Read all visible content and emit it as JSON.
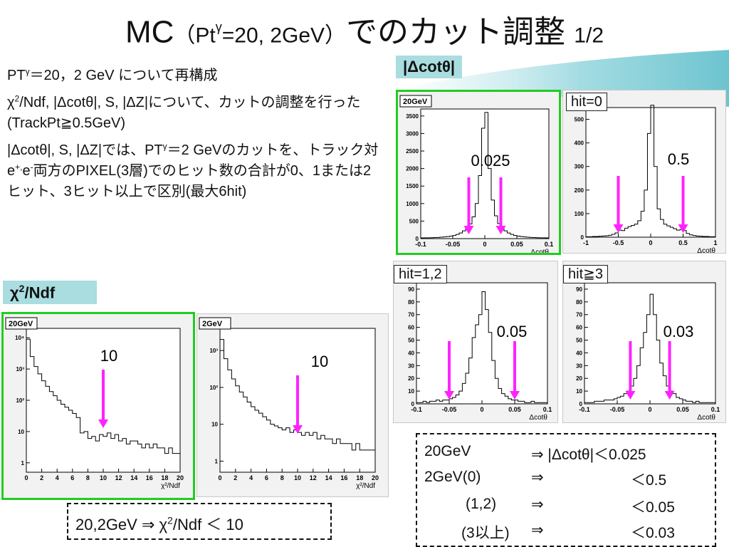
{
  "slide": {
    "title_main": "MC",
    "title_paren": "（Pt",
    "title_sup": "γ",
    "title_paren2": "=20, 2GeV）",
    "title_jp": "でのカット調整",
    "title_page": "1/2"
  },
  "bullets": {
    "b1_pre": "PT",
    "b1_sup": "γ",
    "b1_post": "＝20，2 GeV について再構成",
    "b2_pre": "χ",
    "b2_sup": "2",
    "b2_post": "/Ndf, |Δcotθ|, S, |ΔZ|について、カットの調整を行った(TrackPt≧0.5GeV)",
    "b3_a": "|Δcotθ|, S, |ΔZ|では、PT",
    "b3_sup": "γ",
    "b3_b": "＝2 GeVのカットを、トラック対e",
    "b3_sup2": "+,",
    "b3_c": "e",
    "b3_sup3": "-",
    "b3_d": "両方のPIXEL(3層)でのヒット数の合計が0、1または2ヒット、3ヒット以上で区別(最大6hit)"
  },
  "labels": {
    "dcot_box": "|Δcotθ|",
    "chi_box_pre": "χ",
    "chi_box_sup": "2",
    "chi_box_post": "/Ndf",
    "hit0": "hit=0",
    "hit12": "hit=1,2",
    "hit3": "hit≧3"
  },
  "chart_data": [
    {
      "type": "histogram",
      "title": "20GeV",
      "xlabel": "Δcotθ",
      "x_ticks": [
        "-0.1",
        "-0.05",
        "0",
        "0.05",
        "0.1"
      ],
      "y_ticks": [
        "0",
        "500",
        "1000",
        "1500",
        "2000",
        "2500",
        "3000",
        "3500"
      ],
      "xlim": [
        -0.1,
        0.1
      ],
      "ylim": [
        0,
        3700
      ],
      "bins_x": [
        -0.1,
        -0.095,
        -0.09,
        -0.085,
        -0.08,
        -0.075,
        -0.07,
        -0.065,
        -0.06,
        -0.055,
        -0.05,
        -0.045,
        -0.04,
        -0.035,
        -0.03,
        -0.025,
        -0.02,
        -0.015,
        -0.01,
        -0.005,
        0,
        0.005,
        0.01,
        0.015,
        0.02,
        0.025,
        0.03,
        0.035,
        0.04,
        0.045,
        0.05,
        0.055,
        0.06,
        0.065,
        0.07,
        0.075,
        0.08,
        0.085,
        0.09,
        0.095
      ],
      "values": [
        20,
        22,
        24,
        26,
        30,
        34,
        40,
        48,
        58,
        72,
        90,
        120,
        160,
        220,
        300,
        420,
        620,
        1000,
        1800,
        3150,
        3600,
        2000,
        1100,
        650,
        430,
        300,
        220,
        160,
        120,
        90,
        70,
        58,
        48,
        40,
        34,
        30,
        26,
        24,
        22,
        20
      ],
      "cut_arrows": [
        -0.025,
        0.025
      ],
      "annotation": "0.025"
    },
    {
      "type": "histogram",
      "title": "",
      "xlabel": "Δcotθ",
      "x_ticks": [
        "-1",
        "-0.5",
        "0",
        "0.5",
        "1"
      ],
      "y_ticks": [
        "0",
        "100",
        "200",
        "300",
        "400",
        "500"
      ],
      "xlim": [
        -1,
        1
      ],
      "ylim": [
        0,
        550
      ],
      "bins_x": [
        -1,
        -0.95,
        -0.9,
        -0.85,
        -0.8,
        -0.75,
        -0.7,
        -0.65,
        -0.6,
        -0.55,
        -0.5,
        -0.45,
        -0.4,
        -0.35,
        -0.3,
        -0.25,
        -0.2,
        -0.15,
        -0.1,
        -0.05,
        0,
        0.05,
        0.1,
        0.15,
        0.2,
        0.25,
        0.3,
        0.35,
        0.4,
        0.45,
        0.5,
        0.55,
        0.6,
        0.65,
        0.7,
        0.75,
        0.8,
        0.85,
        0.9,
        0.95
      ],
      "values": [
        2,
        2,
        3,
        3,
        4,
        5,
        6,
        8,
        12,
        18,
        30,
        28,
        38,
        45,
        50,
        55,
        70,
        110,
        200,
        440,
        560,
        300,
        120,
        75,
        55,
        48,
        42,
        36,
        30,
        32,
        28,
        16,
        10,
        7,
        5,
        4,
        3,
        3,
        2,
        2
      ],
      "cut_arrows": [
        -0.5,
        0.5
      ],
      "annotation": "0.5"
    },
    {
      "type": "histogram",
      "title": "",
      "xlabel": "Δcotθ",
      "x_ticks": [
        "-0.1",
        "-0.05",
        "0",
        "0.05",
        "0.1"
      ],
      "y_ticks": [
        "0",
        "10",
        "20",
        "30",
        "40",
        "50",
        "60",
        "70",
        "80",
        "90"
      ],
      "xlim": [
        -0.1,
        0.1
      ],
      "ylim": [
        0,
        95
      ],
      "bins_x": [
        -0.1,
        -0.095,
        -0.09,
        -0.085,
        -0.08,
        -0.075,
        -0.07,
        -0.065,
        -0.06,
        -0.055,
        -0.05,
        -0.045,
        -0.04,
        -0.035,
        -0.03,
        -0.025,
        -0.02,
        -0.015,
        -0.01,
        -0.005,
        0,
        0.005,
        0.01,
        0.015,
        0.02,
        0.025,
        0.03,
        0.035,
        0.04,
        0.045,
        0.05,
        0.055,
        0.06,
        0.065,
        0.07,
        0.075,
        0.08,
        0.085,
        0.09,
        0.095
      ],
      "values": [
        1,
        1,
        2,
        1,
        2,
        2,
        3,
        2,
        3,
        3,
        4,
        5,
        7,
        10,
        16,
        24,
        36,
        52,
        62,
        70,
        88,
        74,
        56,
        34,
        20,
        12,
        8,
        6,
        4,
        3,
        3,
        2,
        2,
        1,
        1,
        2,
        1,
        1,
        1,
        1
      ],
      "cut_arrows": [
        -0.05,
        0.05
      ],
      "annotation": "0.05"
    },
    {
      "type": "histogram",
      "title": "",
      "xlabel": "Δcotθ",
      "x_ticks": [
        "-0.1",
        "-0.05",
        "0",
        "0.05",
        "0.1"
      ],
      "y_ticks": [
        "0",
        "10",
        "20",
        "30",
        "40",
        "50",
        "60",
        "70",
        "80",
        "90"
      ],
      "xlim": [
        -0.1,
        0.1
      ],
      "ylim": [
        0,
        95
      ],
      "bins_x": [
        -0.1,
        -0.095,
        -0.09,
        -0.085,
        -0.08,
        -0.075,
        -0.07,
        -0.065,
        -0.06,
        -0.055,
        -0.05,
        -0.045,
        -0.04,
        -0.035,
        -0.03,
        -0.025,
        -0.02,
        -0.015,
        -0.01,
        -0.005,
        0,
        0.005,
        0.01,
        0.015,
        0.02,
        0.025,
        0.03,
        0.035,
        0.04,
        0.045,
        0.05,
        0.055,
        0.06,
        0.065,
        0.07,
        0.075,
        0.08,
        0.085,
        0.09,
        0.095
      ],
      "values": [
        1,
        1,
        1,
        2,
        2,
        2,
        3,
        3,
        3,
        4,
        5,
        6,
        8,
        10,
        14,
        20,
        30,
        44,
        56,
        70,
        86,
        70,
        50,
        32,
        22,
        14,
        10,
        8,
        5,
        4,
        3,
        2,
        2,
        1,
        2,
        1,
        1,
        1,
        1,
        1
      ],
      "cut_arrows": [
        -0.03,
        0.03
      ],
      "annotation": "0.03"
    },
    {
      "type": "histogram",
      "title": "20GeV",
      "xlabel": "χ²/Ndf",
      "log_y": true,
      "x_ticks": [
        "0",
        "2",
        "4",
        "6",
        "8",
        "10",
        "12",
        "14",
        "16",
        "18",
        "20"
      ],
      "y_ticks": [
        "1",
        "10",
        "10²",
        "10³",
        "10⁴"
      ],
      "xlim": [
        0,
        20
      ],
      "ylim": [
        0.5,
        20000
      ],
      "bins_x": [
        0,
        0.5,
        1,
        1.5,
        2,
        2.5,
        3,
        3.5,
        4,
        4.5,
        5,
        5.5,
        6,
        6.5,
        7,
        7.5,
        8,
        8.5,
        9,
        9.5,
        10,
        10.5,
        11,
        11.5,
        12,
        12.5,
        13,
        13.5,
        14,
        14.5,
        15,
        15.5,
        16,
        16.5,
        17,
        17.5,
        18,
        18.5,
        19,
        19.5
      ],
      "values": [
        9000,
        2500,
        1200,
        700,
        420,
        280,
        190,
        140,
        100,
        75,
        60,
        48,
        38,
        28,
        9,
        10,
        6,
        7,
        5,
        8,
        7,
        9,
        6,
        8,
        5,
        6,
        4,
        5,
        5,
        4,
        3,
        4,
        3,
        4,
        3,
        3,
        2,
        3,
        2,
        2
      ],
      "cut_arrows": [
        10
      ],
      "annotation": "10"
    },
    {
      "type": "histogram",
      "title": "2GeV",
      "xlabel": "χ²/Ndf",
      "log_y": true,
      "x_ticks": [
        "0",
        "2",
        "4",
        "6",
        "8",
        "10",
        "12",
        "14",
        "16",
        "18",
        "20"
      ],
      "y_ticks": [
        "1",
        "10",
        "10²",
        "10³"
      ],
      "xlim": [
        0,
        20
      ],
      "ylim": [
        0.5,
        4000
      ],
      "bins_x": [
        0,
        0.5,
        1,
        1.5,
        2,
        2.5,
        3,
        3.5,
        4,
        4.5,
        5,
        5.5,
        6,
        6.5,
        7,
        7.5,
        8,
        8.5,
        9,
        9.5,
        10,
        10.5,
        11,
        11.5,
        12,
        12.5,
        13,
        13.5,
        14,
        14.5,
        15,
        15.5,
        16,
        16.5,
        17,
        17.5,
        18,
        18.5,
        19,
        19.5
      ],
      "values": [
        2000,
        600,
        300,
        170,
        110,
        75,
        55,
        40,
        30,
        24,
        20,
        16,
        13,
        10,
        9,
        8,
        7,
        8,
        6,
        7,
        6,
        5,
        6,
        5,
        6,
        4,
        5,
        4,
        4,
        3,
        4,
        3,
        3,
        3,
        2,
        3,
        2,
        2,
        2,
        2
      ],
      "cut_arrows": [
        10
      ],
      "annotation": "10"
    }
  ],
  "summary_right": {
    "r1_a": "20GeV",
    "r1_b": "⇒ |Δcotθ|＜0.025",
    "r2_a": "2GeV(0)",
    "r2_b": "⇒",
    "r2_c": "＜0.5",
    "r3_a": "(1,2)",
    "r3_b": "⇒",
    "r3_c": "＜0.05",
    "r4_a": "(3以上)",
    "r4_b": "⇒",
    "r4_c": "＜0.03"
  },
  "summary_left": {
    "pre": "20,2GeV  ⇒  χ",
    "sup": "2",
    "post": "/Ndf  ＜ 10"
  },
  "colors": {
    "arrow": "#ff22ff",
    "green_border": "#22cc22",
    "label_bg": "#a9dde0"
  }
}
